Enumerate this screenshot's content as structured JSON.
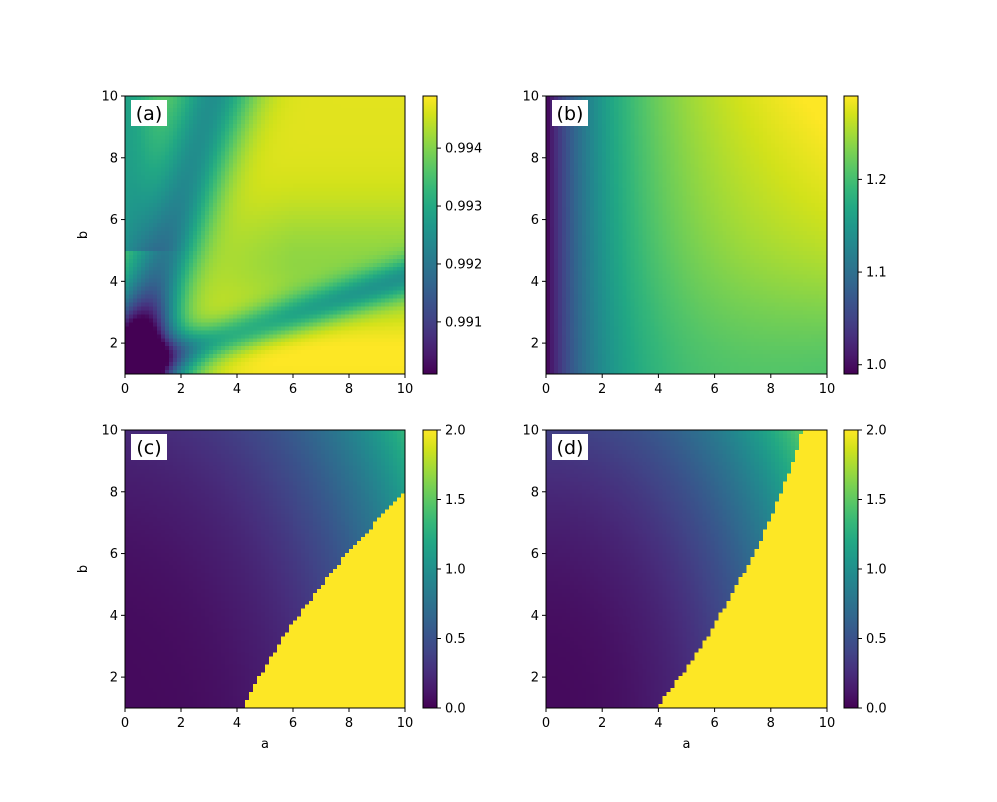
{
  "colormap": "viridis",
  "chart_data": [
    {
      "type": "heatmap",
      "panel_label": "(a)",
      "title": "",
      "xlabel": "",
      "ylabel": "b",
      "xlim": [
        0,
        10
      ],
      "ylim": [
        1,
        10
      ],
      "xticks": [
        "0",
        "2",
        "4",
        "6",
        "8",
        "10"
      ],
      "yticks": [
        "2",
        "4",
        "6",
        "8",
        "10"
      ],
      "colorbar": {
        "vmin": 0.9901,
        "vmax": 0.9949,
        "ticks": [
          0.991,
          0.992,
          0.993,
          0.994
        ],
        "tick_labels": [
          "0.991",
          "0.992",
          "0.993",
          "0.994"
        ]
      },
      "z_function": "a"
    },
    {
      "type": "heatmap",
      "panel_label": "(b)",
      "title": "",
      "xlabel": "",
      "ylabel": "",
      "xlim": [
        0,
        10
      ],
      "ylim": [
        1,
        10
      ],
      "xticks": [
        "0",
        "2",
        "4",
        "6",
        "8",
        "10"
      ],
      "yticks": [
        "2",
        "4",
        "6",
        "8",
        "10"
      ],
      "colorbar": {
        "vmin": 0.99,
        "vmax": 1.29,
        "ticks": [
          1.0,
          1.1,
          1.2
        ],
        "tick_labels": [
          "1.0",
          "1.1",
          "1.2"
        ]
      },
      "z_function": "b"
    },
    {
      "type": "heatmap",
      "panel_label": "(c)",
      "title": "",
      "xlabel": "a",
      "ylabel": "b",
      "xlim": [
        0,
        10
      ],
      "ylim": [
        1,
        10
      ],
      "xticks": [
        "0",
        "2",
        "4",
        "6",
        "8",
        "10"
      ],
      "yticks": [
        "2",
        "4",
        "6",
        "8",
        "10"
      ],
      "colorbar": {
        "vmin": 0.0,
        "vmax": 2.0,
        "ticks": [
          0.0,
          0.5,
          1.0,
          1.5,
          2.0
        ],
        "tick_labels": [
          "0.0",
          "0.5",
          "1.0",
          "1.5",
          "2.0"
        ]
      },
      "z_function": "c"
    },
    {
      "type": "heatmap",
      "panel_label": "(d)",
      "title": "",
      "xlabel": "a",
      "ylabel": "",
      "xlim": [
        0,
        10
      ],
      "ylim": [
        1,
        10
      ],
      "xticks": [
        "0",
        "2",
        "4",
        "6",
        "8",
        "10"
      ],
      "yticks": [
        "2",
        "4",
        "6",
        "8",
        "10"
      ],
      "colorbar": {
        "vmin": 0.0,
        "vmax": 2.0,
        "ticks": [
          0.0,
          0.5,
          1.0,
          1.5,
          2.0
        ],
        "tick_labels": [
          "0.0",
          "0.5",
          "1.0",
          "1.5",
          "2.0"
        ]
      },
      "z_function": "d"
    }
  ]
}
